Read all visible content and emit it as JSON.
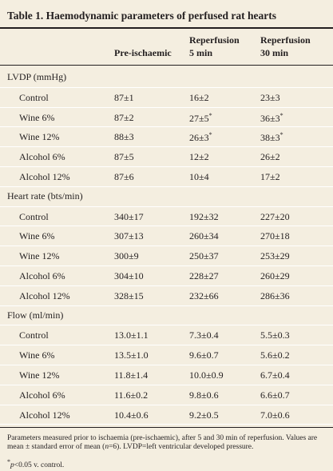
{
  "title": "Table 1. Haemodynamic parameters of perfused rat hearts",
  "columns": [
    [
      "Pre-ischaemic"
    ],
    [
      "Reperfusion",
      "5 min"
    ],
    [
      "Reperfusion",
      "30 min"
    ]
  ],
  "sections": [
    {
      "label": "LVDP (mmHg)",
      "rows": [
        [
          "Control",
          "87±1",
          "16±2",
          "23±3"
        ],
        [
          "Wine 6%",
          "87±2",
          {
            "text": "27±5",
            "sup": "*"
          },
          {
            "text": "36±3",
            "sup": "*"
          }
        ],
        [
          "Wine 12%",
          "88±3",
          {
            "text": "26±3",
            "sup": "*"
          },
          {
            "text": "38±3",
            "sup": "*"
          }
        ],
        [
          "Alcohol 6%",
          "87±5",
          "12±2",
          "26±2"
        ],
        [
          "Alcohol 12%",
          "87±6",
          "10±4",
          "17±2"
        ]
      ]
    },
    {
      "label": "Heart rate (bts/min)",
      "rows": [
        [
          "Control",
          "340±17",
          "192±32",
          "227±20"
        ],
        [
          "Wine 6%",
          "307±13",
          "260±34",
          "270±18"
        ],
        [
          "Wine 12%",
          "300±9",
          "250±37",
          "253±29"
        ],
        [
          "Alcohol 6%",
          "304±10",
          "228±27",
          "260±29"
        ],
        [
          "Alcohol 12%",
          "328±15",
          "232±66",
          "286±36"
        ]
      ]
    },
    {
      "label": "Flow (ml/min)",
      "rows": [
        [
          "Control",
          "13.0±1.1",
          "7.3±0.4",
          "5.5±0.3"
        ],
        [
          "Wine 6%",
          "13.5±1.0",
          "9.6±0.7",
          "5.6±0.2"
        ],
        [
          "Wine 12%",
          "11.8±1.4",
          "10.0±0.9",
          "6.7±0.4"
        ],
        [
          "Alcohol 6%",
          "11.6±0.2",
          "9.8±0.6",
          "6.6±0.7"
        ],
        [
          "Alcohol 12%",
          "10.4±0.6",
          "9.2±0.5",
          "7.0±0.6"
        ]
      ]
    }
  ],
  "footnotes": [
    [
      {
        "text": "Parameters measured prior to ischaemia (pre-ischaemic), after 5 and 30 min of reperfusion. Values are mean ± standard error of mean ("
      },
      {
        "text": "n",
        "italic": true
      },
      {
        "text": "=6). LVDP=left ventricular developed pressure."
      }
    ],
    [
      {
        "text": "*",
        "sup": true
      },
      {
        "text": "p",
        "italic": true
      },
      {
        "text": "<0.05 v. control."
      }
    ]
  ]
}
